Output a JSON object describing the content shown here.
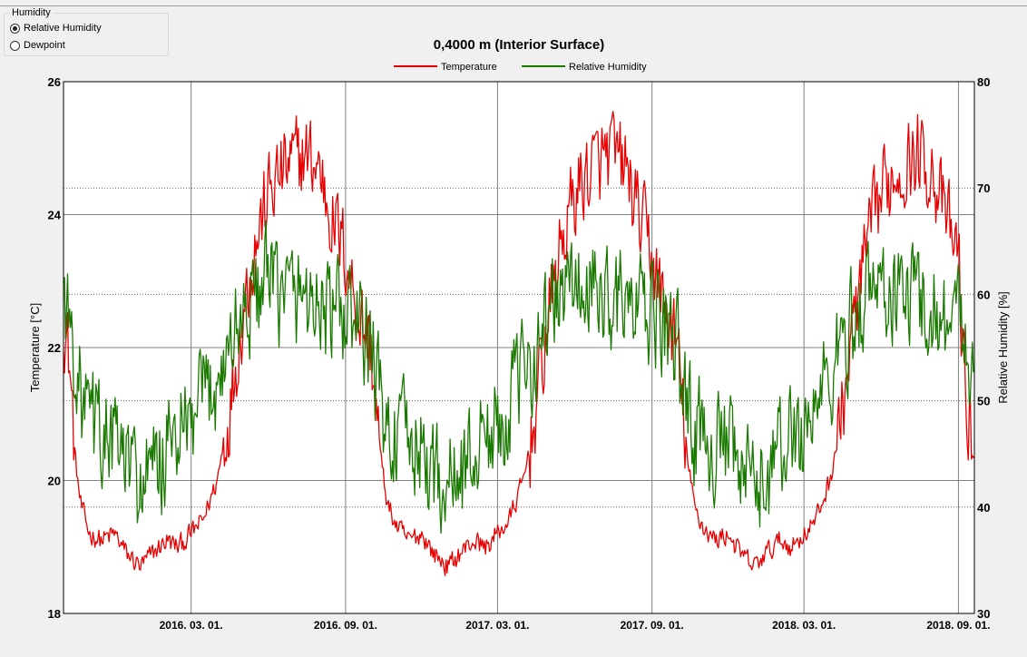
{
  "humidity_group": {
    "title": "Humidity",
    "options": [
      {
        "label": "Relative Humidity",
        "selected": true
      },
      {
        "label": "Dewpoint",
        "selected": false
      }
    ]
  },
  "chart_data": {
    "type": "line",
    "title": "0,4000 m (Interior Surface)",
    "ylabel": "Temperature [°C]",
    "y2label": "Relative Humidity [%]",
    "xlabel": "",
    "ylim": [
      18,
      26
    ],
    "y2lim": [
      30,
      80
    ],
    "yticks": [
      18,
      20,
      22,
      24,
      26
    ],
    "y2ticks": [
      30,
      40,
      50,
      60,
      70,
      80
    ],
    "xlim": [
      "2015-10-01",
      "2018-09-20"
    ],
    "xticks": [
      {
        "date": "2016-03-01",
        "label": "2016. 03. 01."
      },
      {
        "date": "2016-09-01",
        "label": "2016. 09. 01."
      },
      {
        "date": "2017-03-01",
        "label": "2017. 03. 01."
      },
      {
        "date": "2017-09-01",
        "label": "2017. 09. 01."
      },
      {
        "date": "2018-03-01",
        "label": "2018. 03. 01."
      },
      {
        "date": "2018-09-01",
        "label": "2018. 09. 01."
      }
    ],
    "grid": true,
    "legend_position": "top-center",
    "series": [
      {
        "name": "Temperature",
        "axis": "left",
        "color": "#e80000",
        "x": [
          "2015-10-01",
          "2015-10-08",
          "2015-10-15",
          "2015-10-22",
          "2015-11-01",
          "2015-11-15",
          "2015-12-01",
          "2015-12-15",
          "2016-01-01",
          "2016-01-15",
          "2016-02-01",
          "2016-02-15",
          "2016-03-01",
          "2016-03-15",
          "2016-04-01",
          "2016-04-15",
          "2016-05-01",
          "2016-05-15",
          "2016-06-01",
          "2016-06-15",
          "2016-07-01",
          "2016-07-15",
          "2016-08-01",
          "2016-08-15",
          "2016-09-01",
          "2016-09-15",
          "2016-10-01",
          "2016-10-08",
          "2016-10-15",
          "2016-10-22",
          "2016-11-01",
          "2016-11-15",
          "2016-12-01",
          "2016-12-15",
          "2017-01-01",
          "2017-01-15",
          "2017-02-01",
          "2017-02-15",
          "2017-03-01",
          "2017-03-15",
          "2017-04-01",
          "2017-04-15",
          "2017-05-01",
          "2017-05-15",
          "2017-06-01",
          "2017-06-15",
          "2017-07-01",
          "2017-07-15",
          "2017-08-01",
          "2017-08-15",
          "2017-09-01",
          "2017-09-15",
          "2017-10-01",
          "2017-10-08",
          "2017-10-15",
          "2017-10-22",
          "2017-11-01",
          "2017-11-15",
          "2017-12-01",
          "2017-12-15",
          "2018-01-01",
          "2018-01-15",
          "2018-02-01",
          "2018-02-15",
          "2018-03-01",
          "2018-03-15",
          "2018-04-01",
          "2018-04-15",
          "2018-05-01",
          "2018-05-15",
          "2018-06-01",
          "2018-06-15",
          "2018-07-01",
          "2018-07-15",
          "2018-08-01",
          "2018-08-15",
          "2018-09-01",
          "2018-09-10",
          "2018-09-20"
        ],
        "values": [
          22.5,
          21.8,
          20.3,
          19.6,
          19.2,
          19.1,
          19.2,
          18.9,
          18.7,
          18.9,
          19.1,
          19.0,
          19.2,
          19.4,
          20.0,
          21.0,
          22.5,
          23.5,
          24.3,
          24.6,
          24.8,
          24.9,
          24.7,
          24.0,
          23.4,
          22.6,
          22.0,
          21.0,
          20.1,
          19.6,
          19.3,
          19.1,
          19.2,
          18.9,
          18.7,
          18.9,
          19.1,
          19.0,
          19.2,
          19.4,
          20.0,
          21.0,
          22.5,
          23.5,
          24.3,
          24.6,
          24.8,
          24.9,
          24.7,
          24.0,
          23.4,
          22.6,
          22.0,
          21.0,
          20.1,
          19.6,
          19.3,
          19.1,
          19.2,
          18.9,
          18.7,
          18.9,
          19.1,
          19.0,
          19.2,
          19.4,
          20.0,
          21.0,
          22.5,
          23.5,
          24.3,
          24.6,
          24.8,
          24.9,
          24.7,
          24.0,
          23.4,
          21.0,
          20.4
        ]
      },
      {
        "name": "Relative Humidity",
        "axis": "right",
        "color": "#1a7a00",
        "x": [
          "2015-10-01",
          "2015-10-08",
          "2015-10-15",
          "2015-10-22",
          "2015-11-01",
          "2015-11-15",
          "2015-12-01",
          "2015-12-15",
          "2016-01-01",
          "2016-01-15",
          "2016-02-01",
          "2016-02-15",
          "2016-03-01",
          "2016-03-15",
          "2016-04-01",
          "2016-04-15",
          "2016-05-01",
          "2016-05-15",
          "2016-06-01",
          "2016-06-15",
          "2016-07-01",
          "2016-07-15",
          "2016-08-01",
          "2016-08-15",
          "2016-09-01",
          "2016-09-15",
          "2016-10-01",
          "2016-10-08",
          "2016-10-15",
          "2016-10-22",
          "2016-11-01",
          "2016-11-15",
          "2016-12-01",
          "2016-12-15",
          "2017-01-01",
          "2017-01-15",
          "2017-02-01",
          "2017-02-15",
          "2017-03-01",
          "2017-03-15",
          "2017-04-01",
          "2017-04-15",
          "2017-05-01",
          "2017-05-15",
          "2017-06-01",
          "2017-06-15",
          "2017-07-01",
          "2017-07-15",
          "2017-08-01",
          "2017-08-15",
          "2017-09-01",
          "2017-09-15",
          "2017-10-01",
          "2017-10-08",
          "2017-10-15",
          "2017-10-22",
          "2017-11-01",
          "2017-11-15",
          "2017-12-01",
          "2017-12-15",
          "2018-01-01",
          "2018-01-15",
          "2018-02-01",
          "2018-02-15",
          "2018-03-01",
          "2018-03-15",
          "2018-04-01",
          "2018-04-15",
          "2018-05-01",
          "2018-05-15",
          "2018-06-01",
          "2018-06-15",
          "2018-07-01",
          "2018-07-15",
          "2018-08-01",
          "2018-08-15",
          "2018-09-01",
          "2018-09-10",
          "2018-09-20"
        ],
        "values": [
          61,
          57,
          54,
          50,
          48,
          47,
          46,
          44,
          42,
          43,
          45,
          47,
          47,
          50,
          52,
          55,
          58,
          60,
          61,
          60,
          60,
          60,
          59,
          58,
          58,
          57,
          55,
          52,
          49,
          47,
          47,
          46,
          45,
          43,
          42,
          43,
          45,
          47,
          47,
          50,
          52,
          55,
          58,
          60,
          61,
          60,
          60,
          60,
          59,
          58,
          58,
          57,
          55,
          52,
          49,
          47,
          47,
          46,
          45,
          43,
          42,
          43,
          45,
          47,
          47,
          50,
          52,
          55,
          58,
          60,
          61,
          60,
          60,
          60,
          59,
          58,
          58,
          56,
          53
        ]
      }
    ]
  }
}
